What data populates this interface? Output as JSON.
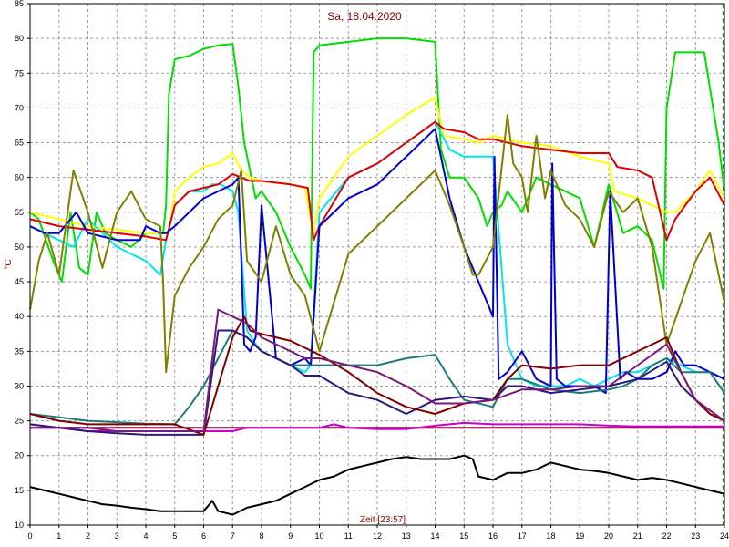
{
  "chart_data": {
    "type": "line",
    "title": "Sa, 18.04.2020",
    "xlabel": "Zeit [23:57]",
    "ylabel": "°C",
    "xlim": [
      0,
      24
    ],
    "ylim": [
      10,
      85
    ],
    "x_ticks": [
      "0",
      "1",
      "2",
      "3",
      "4",
      "5",
      "6",
      "7",
      "8",
      "9",
      "10",
      "11",
      "12",
      "13",
      "14",
      "15",
      "16",
      "17",
      "18",
      "19",
      "20",
      "21",
      "22",
      "23",
      "24"
    ],
    "y_ticks": [
      "10",
      "15",
      "20",
      "25",
      "30",
      "35",
      "40",
      "45",
      "50",
      "55",
      "60",
      "65",
      "70",
      "75",
      "80",
      "85"
    ],
    "grid": true,
    "current_time_marker": 23.95,
    "series": [
      {
        "color": "#00dd00",
        "x": [
          0,
          0.3,
          0.8,
          1.1,
          1.4,
          1.7,
          2,
          2.3,
          2.6,
          3,
          3.5,
          4,
          4.6,
          4.7,
          4.8,
          5,
          5.5,
          6,
          6.5,
          7,
          7.2,
          7.4,
          7.8,
          8,
          8.5,
          9,
          9.5,
          9.7,
          9.8,
          10,
          11,
          12,
          13,
          14,
          14.2,
          14.5,
          15,
          15.5,
          15.8,
          16,
          16.3,
          16.5,
          17,
          17.5,
          18,
          18.5,
          19,
          19.5,
          20,
          20.5,
          21,
          21.5,
          21.9,
          22,
          22.3,
          23,
          23.3,
          23.8,
          24
        ],
        "values": [
          55,
          54,
          48,
          45,
          55,
          47,
          46,
          55,
          52,
          51,
          50,
          52,
          52,
          56,
          72,
          77,
          77.5,
          78.5,
          79,
          79.2,
          73,
          65,
          57,
          58,
          55,
          50,
          46,
          44,
          78,
          79,
          79.5,
          80,
          80,
          79.5,
          64,
          60,
          60,
          57,
          53,
          55,
          56,
          58,
          55,
          60,
          59,
          58,
          57,
          50,
          59,
          52,
          53,
          51,
          44,
          70,
          78,
          78,
          78,
          65,
          58
        ]
      },
      {
        "color": "#ffff00",
        "x": [
          0,
          1,
          2,
          3,
          4,
          4.8,
          5,
          5.5,
          6,
          6.5,
          7,
          7.3,
          7.6,
          8,
          9,
          9.5,
          9.7,
          9.8,
          10,
          11,
          12,
          13,
          14,
          14.3,
          15,
          15.5,
          16,
          17,
          18,
          19,
          20,
          20.2,
          21,
          21.5,
          22,
          22.3,
          23,
          23.5,
          24
        ],
        "values": [
          55,
          54,
          53,
          52.5,
          52,
          52,
          58,
          60,
          61.5,
          62,
          63.5,
          61,
          60,
          59.5,
          59,
          58.5,
          54,
          52,
          57,
          63,
          66,
          69,
          71.5,
          66,
          65.5,
          65,
          66,
          65,
          64.5,
          63,
          62,
          58,
          57,
          56,
          55,
          55,
          58,
          61,
          57
        ]
      },
      {
        "color": "#00e5ee",
        "x": [
          0,
          1,
          1.5,
          2,
          3,
          3.5,
          4,
          4.5,
          4.7,
          5,
          5.5,
          6,
          6.3,
          6.6,
          7,
          7.2,
          7.5,
          7.8,
          8,
          8.5,
          9,
          9.5,
          9.7,
          10,
          11,
          12,
          13,
          14,
          14.5,
          15,
          15.5,
          16,
          16.5,
          17,
          17.5,
          18,
          18.5,
          19,
          19.5,
          20,
          20.5,
          21,
          21.5,
          22,
          22.5,
          23,
          23.5,
          24
        ],
        "values": [
          53,
          51,
          50,
          54,
          50,
          49,
          48,
          46,
          51,
          56,
          58,
          58,
          59,
          59,
          58,
          55,
          38,
          36,
          35,
          34,
          33,
          32,
          33,
          55,
          60,
          62,
          65,
          68,
          64,
          63,
          63,
          63,
          36,
          31,
          30,
          30,
          30,
          31,
          30,
          31,
          32,
          32,
          33,
          34,
          33,
          32,
          32,
          29
        ]
      },
      {
        "color": "#dd0000",
        "x": [
          0,
          1,
          2,
          3,
          4,
          4.7,
          5,
          5.5,
          6,
          6.5,
          7,
          7.3,
          7.6,
          8,
          9,
          9.6,
          9.8,
          10,
          11,
          12,
          13,
          14,
          14.3,
          15,
          15.5,
          16,
          17,
          18,
          19,
          20,
          20.3,
          21,
          21.5,
          22,
          22.3,
          23,
          23.5,
          24
        ],
        "values": [
          54,
          53,
          52.5,
          52,
          51.5,
          51,
          56,
          58,
          58.5,
          59,
          60.5,
          60,
          59.5,
          59.5,
          59,
          58.5,
          51,
          53,
          60,
          62,
          65,
          68,
          67,
          66.5,
          65.5,
          65.5,
          64.5,
          64,
          63.5,
          63.5,
          61.5,
          61,
          60,
          51,
          54,
          58,
          60,
          56
        ]
      },
      {
        "color": "#0000cd",
        "x": [
          0,
          0.5,
          1,
          1.6,
          2,
          3,
          3.8,
          4,
          4.5,
          4.7,
          5,
          5.5,
          6,
          6.5,
          7,
          7.2,
          7.4,
          7.6,
          7.8,
          8,
          8.5,
          9,
          9.5,
          9.7,
          10,
          11,
          12,
          13,
          14,
          14.5,
          15,
          15.5,
          16,
          16.05,
          16.2,
          16.5,
          17,
          17.5,
          18,
          18.05,
          18.2,
          18.5,
          19,
          19.5,
          19.9,
          20.05,
          20.4,
          20.6,
          21,
          21.5,
          22,
          22.3,
          22.6,
          23,
          23.5,
          24
        ],
        "values": [
          53,
          52,
          52,
          55,
          52,
          51,
          51,
          53,
          52,
          52,
          53,
          55,
          57,
          58,
          59,
          60,
          36,
          35,
          37,
          56,
          34,
          33,
          34,
          33,
          53,
          57,
          59,
          63,
          67,
          57,
          50,
          45,
          40,
          63,
          31,
          32,
          35,
          31,
          30,
          62,
          31,
          30,
          30,
          30,
          29,
          58,
          31,
          32,
          31,
          31,
          32,
          35,
          33,
          33,
          32,
          31
        ]
      },
      {
        "color": "#808000",
        "x": [
          0,
          0.3,
          0.6,
          1,
          1.5,
          2,
          2.5,
          3,
          3.5,
          4,
          4.5,
          4.6,
          4.7,
          5,
          5.5,
          6,
          6.5,
          7,
          7.3,
          7.5,
          8,
          8.5,
          9,
          9.5,
          10,
          11,
          12,
          13,
          14,
          14.5,
          15,
          15.3,
          15.5,
          16,
          16.5,
          16.7,
          17,
          17.2,
          17.5,
          17.8,
          18,
          18.5,
          19,
          19.5,
          20,
          20.5,
          21,
          21.5,
          22,
          22.5,
          23,
          23.5,
          24
        ],
        "values": [
          41,
          48,
          52,
          46,
          61,
          55,
          47,
          55,
          58,
          54,
          53,
          45,
          32,
          43,
          47,
          50,
          54,
          56,
          61,
          48,
          45,
          53,
          46,
          43,
          35,
          49,
          53,
          57,
          61,
          56,
          50,
          46,
          46,
          50,
          69,
          62,
          60,
          55,
          66,
          57,
          61,
          56,
          54,
          50,
          58,
          55,
          57,
          50,
          36,
          42,
          48,
          52,
          42
        ]
      },
      {
        "color": "#800040",
        "x": [
          0,
          1,
          2,
          3,
          4,
          5,
          6,
          6.5,
          7,
          7.5,
          8,
          8.5,
          9,
          9.5,
          10,
          11,
          12,
          13,
          13.5,
          14,
          15,
          16,
          16.5,
          17,
          18,
          19,
          20,
          20.5,
          21,
          21.5,
          22,
          22.5,
          23,
          23.5,
          24
        ],
        "values": [
          24,
          24,
          24,
          24,
          24,
          24,
          24,
          24,
          24,
          24,
          24,
          24,
          24,
          24,
          24,
          24,
          24,
          24,
          24,
          24,
          24,
          24,
          24,
          24,
          24,
          24,
          24,
          24,
          24,
          24,
          24,
          24,
          24,
          24,
          24
        ]
      },
      {
        "color": "#cc00cc",
        "x": [
          0,
          1,
          2,
          3,
          4,
          5,
          6,
          7,
          7.5,
          8,
          9,
          10,
          10.5,
          11,
          12,
          13,
          14,
          15,
          16,
          17,
          18,
          19,
          20,
          21,
          22,
          23,
          24
        ],
        "values": [
          24.5,
          24,
          23.5,
          23.5,
          23.5,
          23.5,
          23.5,
          23.5,
          24,
          24,
          24,
          24,
          24.5,
          24,
          23.8,
          23.8,
          24.3,
          24.7,
          24.5,
          24.5,
          24.5,
          24.5,
          24.3,
          24.2,
          24.2,
          24.2,
          24.2
        ]
      },
      {
        "color": "#000000",
        "x": [
          0,
          0.5,
          1,
          1.5,
          2,
          2.5,
          3,
          3.5,
          4,
          4.5,
          5,
          5.5,
          6,
          6.3,
          6.5,
          7,
          7.5,
          8,
          8.5,
          9,
          9.5,
          10,
          10.5,
          11,
          11.5,
          12,
          12.5,
          13,
          13.5,
          14,
          14.5,
          15,
          15.3,
          15.5,
          16,
          16.5,
          17,
          17.5,
          18,
          18.5,
          19,
          19.5,
          20,
          20.5,
          21,
          21.5,
          22,
          22.5,
          23,
          23.5,
          24
        ],
        "values": [
          15.5,
          15,
          14.5,
          14,
          13.5,
          13,
          12.8,
          12.5,
          12.3,
          12,
          12,
          12,
          12,
          13.5,
          12,
          11.5,
          12.5,
          13,
          13.5,
          14.5,
          15.5,
          16.5,
          17,
          18,
          18.5,
          19,
          19.5,
          19.8,
          19.5,
          19.5,
          19.5,
          20,
          19.5,
          17,
          16.5,
          17.5,
          17.5,
          18,
          19,
          18.5,
          18,
          17.8,
          17.5,
          17,
          16.5,
          16.8,
          16.5,
          16,
          15.5,
          15,
          14.5
        ]
      },
      {
        "color": "#1f7a7a",
        "x": [
          0,
          1,
          2,
          3,
          4,
          5,
          5.5,
          6,
          6.5,
          7,
          7.5,
          8,
          8.5,
          9,
          9.5,
          10,
          11,
          12,
          13,
          14,
          14.5,
          15,
          16,
          16.5,
          17,
          18,
          19,
          20,
          20.5,
          21,
          21.5,
          22,
          22.5,
          23,
          23.5,
          24
        ],
        "values": [
          26,
          25.5,
          25,
          24.8,
          24.6,
          24.5,
          27,
          30,
          34,
          38,
          37,
          35,
          34,
          33,
          33,
          33,
          33,
          33,
          34,
          34.5,
          31,
          28,
          27,
          31,
          31,
          29.5,
          29,
          29.5,
          30,
          31,
          33,
          34,
          32,
          32,
          32,
          29
        ]
      },
      {
        "color": "#2c1a7a",
        "x": [
          0,
          1,
          2,
          3,
          4,
          5,
          6,
          6.5,
          7,
          7.5,
          8,
          8.5,
          9,
          9.5,
          10,
          11,
          12,
          13,
          14,
          15,
          16,
          16.5,
          17,
          18,
          19,
          20,
          21,
          22,
          22.5,
          23,
          23.5,
          24
        ],
        "values": [
          24.5,
          24,
          23.5,
          23.2,
          23,
          23,
          23,
          38,
          38,
          37,
          35,
          34,
          33,
          31.5,
          31.5,
          29,
          28,
          26,
          28,
          28.5,
          28,
          30,
          30,
          29,
          29.5,
          30,
          31,
          33.5,
          30,
          28,
          26,
          25
        ]
      },
      {
        "color": "#800000",
        "x": [
          0,
          1,
          2,
          3,
          4,
          5,
          6,
          6.5,
          7,
          7.4,
          7.6,
          8,
          8.5,
          9,
          9.5,
          10,
          11,
          12,
          13,
          14,
          15,
          16,
          16.5,
          17,
          18,
          19,
          20,
          21,
          22,
          22.5,
          23,
          23.5,
          24
        ],
        "values": [
          26,
          25,
          24.5,
          24.5,
          24.5,
          24.5,
          23,
          30,
          37,
          40,
          38,
          37.5,
          37,
          36.5,
          35.5,
          34.5,
          32,
          29,
          27,
          26,
          27.5,
          28,
          31,
          33,
          32.5,
          33,
          33,
          35,
          37,
          32,
          28,
          26,
          25
        ]
      },
      {
        "color": "#7a1a7a",
        "x": [
          0,
          1,
          2,
          3,
          4,
          5,
          6,
          6.5,
          7,
          7.5,
          8,
          8.5,
          9,
          9.5,
          10,
          11,
          12,
          13,
          14,
          15,
          16,
          17,
          18,
          19,
          20,
          21,
          22,
          22.5,
          23,
          24
        ],
        "values": [
          24,
          24,
          24,
          23.5,
          23.5,
          23.5,
          23.5,
          41,
          40,
          39,
          37,
          36,
          35,
          34,
          34,
          33,
          32,
          30,
          27.5,
          27.5,
          28,
          29.5,
          29.5,
          30,
          30,
          33,
          36,
          32,
          28,
          25
        ]
      }
    ]
  }
}
